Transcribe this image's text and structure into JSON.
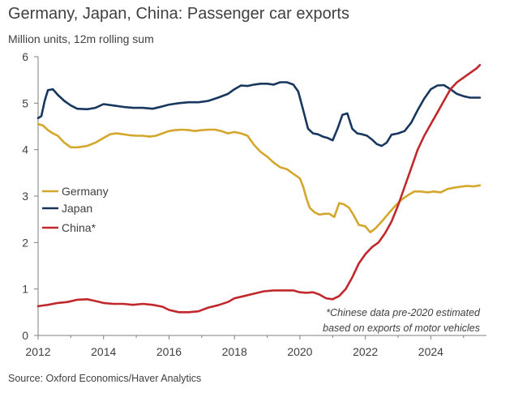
{
  "chart_data": {
    "type": "line",
    "title": "Germany, Japan, China: Passenger car exports",
    "subtitle": "Million units, 12m rolling sum",
    "source": "Source: Oxford Economics/Haver Analytics",
    "annotation": [
      "*Chinese data pre-2020 estimated",
      "based on exports of motor vehicles"
    ],
    "xlim": [
      2012,
      2025.7
    ],
    "ylim": [
      0,
      6
    ],
    "x_ticks": [
      "2012",
      "2014",
      "2016",
      "2018",
      "2020",
      "2022",
      "2024"
    ],
    "y_ticks": [
      "0",
      "1",
      "2",
      "3",
      "4",
      "5",
      "6"
    ],
    "legend_position": "left",
    "series": [
      {
        "name": "Germany",
        "color": "#D4A72C",
        "x": [
          2012.0,
          2012.15,
          2012.3,
          2012.45,
          2012.6,
          2012.8,
          2013.0,
          2013.2,
          2013.5,
          2013.75,
          2014.0,
          2014.2,
          2014.4,
          2014.6,
          2014.8,
          2015.0,
          2015.2,
          2015.4,
          2015.6,
          2015.8,
          2016.0,
          2016.2,
          2016.4,
          2016.6,
          2016.8,
          2017.0,
          2017.2,
          2017.4,
          2017.6,
          2017.8,
          2018.0,
          2018.2,
          2018.4,
          2018.6,
          2018.8,
          2019.0,
          2019.2,
          2019.4,
          2019.6,
          2019.8,
          2020.0,
          2020.1,
          2020.2,
          2020.3,
          2020.45,
          2020.6,
          2020.75,
          2020.9,
          2021.05,
          2021.2,
          2021.35,
          2021.5,
          2021.65,
          2021.8,
          2022.0,
          2022.15,
          2022.3,
          2022.5,
          2022.7,
          2022.9,
          2023.1,
          2023.3,
          2023.5,
          2023.7,
          2023.9,
          2024.1,
          2024.3,
          2024.5,
          2024.7,
          2024.9,
          2025.1,
          2025.3,
          2025.5
        ],
        "values": [
          4.55,
          4.52,
          4.42,
          4.35,
          4.3,
          4.15,
          4.05,
          4.05,
          4.08,
          4.15,
          4.25,
          4.33,
          4.35,
          4.33,
          4.31,
          4.3,
          4.3,
          4.28,
          4.3,
          4.35,
          4.4,
          4.42,
          4.43,
          4.42,
          4.4,
          4.42,
          4.43,
          4.43,
          4.4,
          4.35,
          4.38,
          4.35,
          4.3,
          4.1,
          3.95,
          3.85,
          3.72,
          3.62,
          3.58,
          3.48,
          3.38,
          3.2,
          2.95,
          2.75,
          2.65,
          2.6,
          2.62,
          2.62,
          2.55,
          2.85,
          2.82,
          2.75,
          2.58,
          2.38,
          2.35,
          2.22,
          2.3,
          2.45,
          2.62,
          2.78,
          2.92,
          3.02,
          3.1,
          3.1,
          3.08,
          3.1,
          3.08,
          3.15,
          3.18,
          3.2,
          3.22,
          3.21,
          3.23
        ]
      },
      {
        "name": "Japan",
        "color": "#17375E",
        "x": [
          2012.0,
          2012.1,
          2012.2,
          2012.3,
          2012.45,
          2012.6,
          2012.8,
          2013.0,
          2013.2,
          2013.5,
          2013.75,
          2014.0,
          2014.3,
          2014.6,
          2014.9,
          2015.2,
          2015.5,
          2015.8,
          2016.0,
          2016.3,
          2016.6,
          2016.9,
          2017.2,
          2017.5,
          2017.8,
          2018.0,
          2018.2,
          2018.4,
          2018.6,
          2018.8,
          2019.0,
          2019.2,
          2019.4,
          2019.6,
          2019.8,
          2019.95,
          2020.1,
          2020.25,
          2020.4,
          2020.55,
          2020.7,
          2020.85,
          2021.0,
          2021.15,
          2021.3,
          2021.45,
          2021.6,
          2021.75,
          2021.9,
          2022.05,
          2022.2,
          2022.35,
          2022.5,
          2022.65,
          2022.8,
          2023.0,
          2023.2,
          2023.4,
          2023.6,
          2023.8,
          2024.0,
          2024.2,
          2024.4,
          2024.6,
          2024.8,
          2025.0,
          2025.2,
          2025.4,
          2025.5
        ],
        "values": [
          4.68,
          4.72,
          5.05,
          5.28,
          5.3,
          5.18,
          5.05,
          4.95,
          4.88,
          4.87,
          4.9,
          4.98,
          4.95,
          4.92,
          4.9,
          4.9,
          4.88,
          4.93,
          4.97,
          5.0,
          5.02,
          5.02,
          5.05,
          5.12,
          5.2,
          5.3,
          5.38,
          5.37,
          5.4,
          5.42,
          5.42,
          5.4,
          5.45,
          5.45,
          5.4,
          5.25,
          4.85,
          4.45,
          4.35,
          4.33,
          4.28,
          4.25,
          4.2,
          4.45,
          4.75,
          4.78,
          4.45,
          4.35,
          4.33,
          4.3,
          4.22,
          4.12,
          4.08,
          4.15,
          4.32,
          4.35,
          4.4,
          4.58,
          4.85,
          5.1,
          5.3,
          5.38,
          5.39,
          5.3,
          5.2,
          5.15,
          5.12,
          5.12,
          5.12
        ]
      },
      {
        "name": "China*",
        "color": "#C0282C",
        "x": [
          2012.0,
          2012.3,
          2012.6,
          2012.9,
          2013.2,
          2013.5,
          2013.7,
          2014.0,
          2014.3,
          2014.6,
          2014.9,
          2015.2,
          2015.5,
          2015.8,
          2016.0,
          2016.3,
          2016.6,
          2016.9,
          2017.2,
          2017.5,
          2017.8,
          2018.0,
          2018.3,
          2018.6,
          2018.9,
          2019.2,
          2019.5,
          2019.8,
          2020.0,
          2020.2,
          2020.4,
          2020.6,
          2020.8,
          2021.0,
          2021.2,
          2021.4,
          2021.6,
          2021.8,
          2022.0,
          2022.2,
          2022.4,
          2022.6,
          2022.8,
          2023.0,
          2023.2,
          2023.4,
          2023.6,
          2023.8,
          2024.0,
          2024.2,
          2024.4,
          2024.6,
          2024.8,
          2025.0,
          2025.2,
          2025.4,
          2025.5
        ],
        "values": [
          0.63,
          0.66,
          0.7,
          0.72,
          0.77,
          0.78,
          0.75,
          0.7,
          0.68,
          0.68,
          0.66,
          0.68,
          0.66,
          0.62,
          0.55,
          0.5,
          0.5,
          0.52,
          0.6,
          0.65,
          0.72,
          0.8,
          0.85,
          0.9,
          0.95,
          0.97,
          0.97,
          0.97,
          0.93,
          0.92,
          0.93,
          0.88,
          0.8,
          0.78,
          0.85,
          1.0,
          1.25,
          1.55,
          1.75,
          1.9,
          2.0,
          2.2,
          2.45,
          2.8,
          3.2,
          3.6,
          4.0,
          4.3,
          4.55,
          4.8,
          5.05,
          5.3,
          5.45,
          5.55,
          5.65,
          5.75,
          5.82
        ]
      }
    ]
  }
}
